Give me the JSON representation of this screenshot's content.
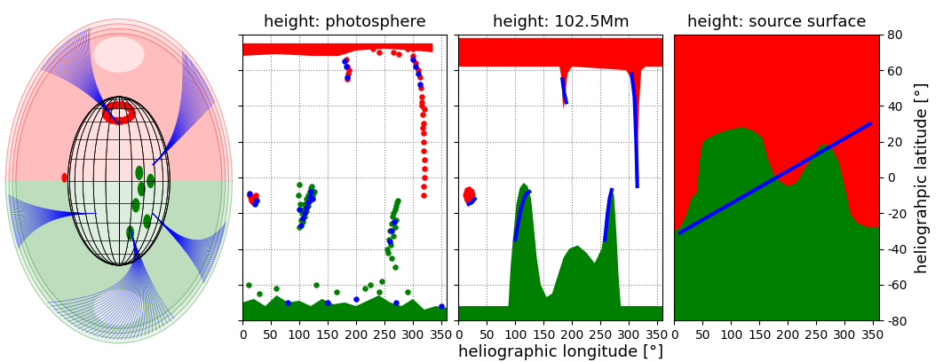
{
  "chart_data": [
    {
      "type": "scatter",
      "title": "height: photosphere",
      "xlim": [
        0,
        360
      ],
      "ylim": [
        -80,
        80
      ],
      "xticks": [
        0,
        50,
        100,
        150,
        200,
        250,
        300,
        350
      ],
      "yticks": [
        -80,
        -60,
        -40,
        -20,
        0,
        20,
        40,
        60,
        80
      ],
      "grid": true,
      "tick_labels": "x",
      "series": [
        {
          "type": "area",
          "color": "#ff0000",
          "x": [
            0,
            60,
            120,
            170,
            220,
            280,
            335,
            335,
            300,
            250,
            200,
            170,
            120,
            60,
            0
          ],
          "y": [
            75,
            75,
            75,
            75,
            75,
            75,
            75,
            70,
            71,
            72,
            71,
            68,
            68,
            69,
            68
          ]
        },
        {
          "type": "scatter",
          "color": "#ff0000",
          "marker": "o",
          "x": [
            183,
            184,
            186,
            185,
            187,
            300,
            305,
            310,
            312,
            314,
            315,
            316,
            317,
            318,
            318,
            319,
            319,
            320,
            320,
            320,
            319,
            318,
            315,
            321,
            317,
            12,
            14,
            16,
            18,
            20,
            22,
            24,
            15,
            19,
            23,
            230,
            240,
            265,
            275,
            290,
            300
          ],
          "y": [
            66,
            62,
            58,
            55,
            60,
            68,
            64,
            60,
            56,
            50,
            45,
            40,
            35,
            30,
            25,
            20,
            15,
            10,
            5,
            0,
            -5,
            -10,
            42,
            38,
            28,
            -10,
            -11,
            -12,
            -11,
            -12,
            -13,
            -12,
            -13,
            -14,
            -10,
            72,
            70,
            70,
            69,
            72,
            72
          ]
        },
        {
          "type": "area",
          "color": "#008000",
          "x": [
            0,
            20,
            40,
            60,
            80,
            100,
            120,
            140,
            160,
            180,
            200,
            220,
            240,
            260,
            280,
            300,
            320,
            340,
            360,
            360,
            0
          ],
          "y": [
            -70,
            -68,
            -72,
            -66,
            -70,
            -69,
            -72,
            -68,
            -71,
            -70,
            -72,
            -69,
            -66,
            -70,
            -72,
            -68,
            -74,
            -72,
            -73,
            -80,
            -80
          ]
        },
        {
          "type": "scatter",
          "color": "#008000",
          "marker": "o",
          "x": [
            100,
            103,
            105,
            108,
            110,
            112,
            115,
            118,
            120,
            122,
            106,
            110,
            113,
            116,
            119,
            124,
            126,
            102,
            98,
            100,
            255,
            258,
            260,
            262,
            264,
            266,
            268,
            270,
            272,
            274,
            257,
            261,
            265,
            268,
            271,
            262,
            268,
            215,
            225,
            240,
            60,
            10,
            130,
            165,
            30,
            245,
            290
          ],
          "y": [
            -28,
            -24,
            -20,
            -18,
            -15,
            -12,
            -10,
            -8,
            -6,
            -5,
            -25,
            -22,
            -19,
            -16,
            -13,
            -10,
            -8,
            -15,
            -10,
            -4,
            -40,
            -35,
            -30,
            -26,
            -22,
            -20,
            -18,
            -16,
            -14,
            -13,
            -42,
            -38,
            -33,
            -28,
            -24,
            -45,
            -50,
            -62,
            -60,
            -64,
            -62,
            -60,
            -60,
            -64,
            -65,
            -58,
            -64
          ]
        },
        {
          "type": "scatter",
          "color": "#0000ff",
          "marker": "o",
          "x": [
            103,
            106,
            109,
            112,
            115,
            118,
            121,
            124,
            100,
            259,
            263,
            267,
            25,
            21,
            12,
            300,
            305,
            310,
            313,
            185,
            182,
            180,
            80,
            150,
            270,
            350,
            200
          ],
          "y": [
            -27,
            -23,
            -20,
            -17,
            -14,
            -11,
            -8,
            -12,
            -18,
            -36,
            -30,
            -25,
            -13,
            -15,
            -9,
            66,
            62,
            58,
            52,
            56,
            62,
            65,
            -70,
            -70,
            -70,
            -72,
            -68
          ]
        }
      ]
    },
    {
      "type": "area",
      "title": "height: 102.5Mm",
      "xlabel": "heliographic longitude [°]",
      "xlim": [
        0,
        360
      ],
      "ylim": [
        -80,
        80
      ],
      "xticks": [
        0,
        50,
        100,
        150,
        200,
        250,
        300,
        350
      ],
      "yticks": [
        -80,
        -60,
        -40,
        -20,
        0,
        20,
        40,
        60,
        80
      ],
      "grid": true,
      "tick_labels": "x",
      "series": [
        {
          "color": "#ff0000",
          "x": [
            0,
            360,
            360,
            330,
            322,
            318,
            316,
            315,
            314,
            312,
            311,
            310,
            305,
            295,
            200,
            192,
            188,
            185,
            183,
            182,
            178,
            0
          ],
          "y": [
            78,
            78,
            62,
            62,
            60,
            40,
            20,
            0,
            -7,
            0,
            20,
            40,
            55,
            60,
            62,
            58,
            45,
            38,
            45,
            55,
            62,
            62
          ]
        },
        {
          "color": "#ff0000",
          "x": [
            8,
            12,
            20,
            28,
            30,
            28,
            20,
            12,
            8
          ],
          "y": [
            -10,
            -6,
            -5,
            -7,
            -10,
            -14,
            -15,
            -14,
            -10
          ]
        },
        {
          "color": "#008000",
          "x": [
            0,
            0,
            88,
            92,
            96,
            102,
            108,
            115,
            122,
            128,
            132,
            138,
            145,
            155,
            165,
            175,
            185,
            195,
            210,
            225,
            240,
            252,
            260,
            266,
            270,
            274,
            278,
            282,
            286,
            360,
            360
          ],
          "y": [
            -80,
            -72,
            -72,
            -50,
            -35,
            -15,
            -6,
            -3,
            -5,
            -12,
            -25,
            -45,
            -60,
            -67,
            -65,
            -55,
            -45,
            -40,
            -38,
            -42,
            -48,
            -40,
            -25,
            -12,
            -7,
            -10,
            -30,
            -55,
            -72,
            -72,
            -80
          ]
        },
        {
          "type": "line",
          "color": "#0000ff",
          "x": [
            100,
            105,
            110,
            115,
            120,
            125,
            null,
            258,
            262,
            266,
            270,
            null,
            183,
            186,
            190,
            null,
            305,
            310,
            313,
            315,
            null,
            18,
            24,
            29
          ],
          "y": [
            -35,
            -26,
            -18,
            -12,
            -9,
            -8,
            null,
            -35,
            -22,
            -12,
            -7,
            null,
            55,
            48,
            42,
            null,
            58,
            45,
            20,
            -5,
            null,
            -15,
            -14,
            -12
          ]
        }
      ]
    },
    {
      "type": "area",
      "title": "height: source surface",
      "ylabel": "heliograhpic latitude [°]",
      "xlim": [
        0,
        360
      ],
      "ylim": [
        -80,
        80
      ],
      "xticks": [
        0,
        50,
        100,
        150,
        200,
        250,
        300,
        350
      ],
      "yticks": [
        -80,
        -60,
        -40,
        -20,
        0,
        20,
        40,
        60,
        80
      ],
      "grid": true,
      "tick_labels": true,
      "series": [
        {
          "color": "#ff0000",
          "x": [
            0,
            360,
            360,
            0
          ],
          "y": [
            80,
            80,
            -80,
            -80
          ]
        },
        {
          "color": "#008000",
          "x": [
            0,
            10,
            20,
            30,
            40,
            45,
            50,
            60,
            80,
            100,
            120,
            140,
            155,
            165,
            175,
            185,
            200,
            215,
            230,
            245,
            255,
            265,
            280,
            290,
            300,
            310,
            320,
            340,
            360,
            360,
            0
          ],
          "y": [
            -30,
            -28,
            -22,
            -12,
            -8,
            10,
            20,
            22,
            25,
            27,
            28,
            26,
            22,
            10,
            2,
            -2,
            -5,
            -3,
            5,
            12,
            17,
            19,
            15,
            8,
            -5,
            -20,
            -25,
            -28,
            -28,
            -80,
            -80
          ]
        },
        {
          "type": "line",
          "color": "#0000ff",
          "x": [
            10,
            345
          ],
          "y": [
            -31,
            30
          ]
        }
      ]
    }
  ]
}
